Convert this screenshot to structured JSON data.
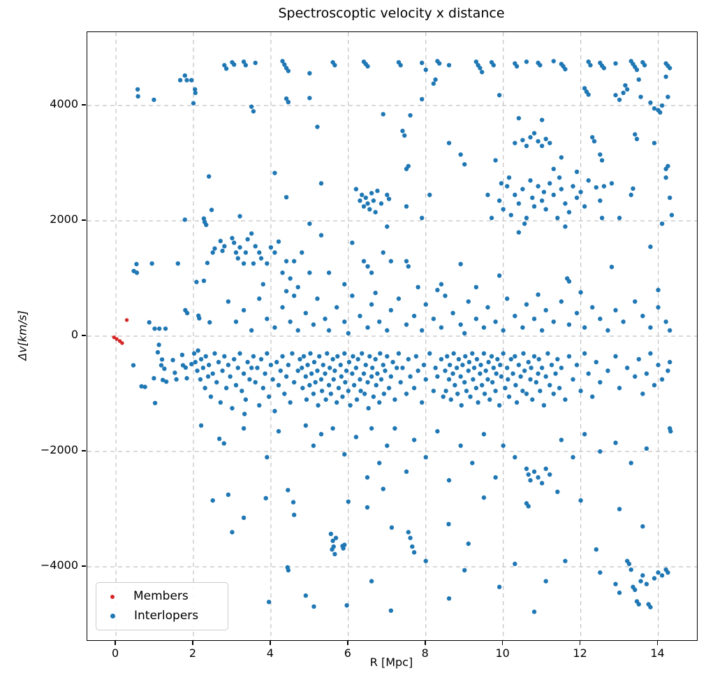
{
  "chart_data": {
    "type": "scatter",
    "title": "Spectroscoptic velocity x distance",
    "xlabel": "R [Mpc]",
    "ylabel": "Δv[km/s]",
    "xlim": [
      -0.74,
      15.0
    ],
    "ylim": [
      -5273,
      5273
    ],
    "xticks": [
      0,
      2,
      4,
      6,
      8,
      10,
      12,
      14
    ],
    "yticks": [
      -4000,
      -2000,
      0,
      2000,
      4000
    ],
    "grid": true,
    "grid_style": "dashed",
    "grid_color": "#c2c2c2",
    "legend_position": "lower left",
    "legend_entries": [
      "Members",
      "Interlopers"
    ],
    "series": [
      {
        "name": "Members",
        "color": "#d62728",
        "marker_radius": 2.7,
        "points": "-0.05,-20;0.02,-50;0.1,-85;0.16,-120;0.28,280"
      },
      {
        "name": "Interlopers",
        "color": "#1f77b4",
        "marker_radius": 3.2,
        "points": "2.8,4700;2.85,4640;3,4750;3.05,4710;3.3,4760;3.35,4700;3.6,4740;4.3,4770;4.35,4710;4.4,4650;4.45,4600;5.6,4750;5.65,4700;6.4,4760;6.45,4720;6.5,4680;7.3,4750;7.35,4700;7.9,4740;8,4620;8.3,4770;8.35,4730;8.6,4700;9.3,4760;9.35,4700;9.4,4650;9.7,4750;9.75,4700;10.3,4730;10.35,4680;10.6,4760;10.9,4740;10.95,4700;11.3,4770;11.5,4720;11.55,4680;11.6,4630;12.2,4760;12.25,4700;12.5,4740;12.55,4690;12.6,4650;12.9,4730;13.3,4770;13.35,4720;13.4,4670;13.6,4750;13.65,4700;14.2,4730;14.25,4690;14.3,4650;5,4560;9.45,4580;13.45,4620;0.56,4280;0.57,4160;0.98,4100;1.66,4440;1.78,4520;1.83,4440;1.95,4440;2.04,4280;2.05,4220;2,4040;3.5,3980;3.55,3900;4.4,4120;4.45,4060;5,4130;6.9,3850;7.6,3830;7.9,4110;8.2,4380;9.9,4180;10.4,3780;11,3750;12.1,4300;12.15,4240;12.2,4190;12.9,4180;13,4100;13.1,4220;13.15,4350;13.2,4280;13.5,4450;13.55,4150;13.8,4050;13.9,3950;14,3920;14.05,3880;14.1,4000;14.2,4500;14.25,4150;8.25,4450;5.2,3630;7.4,3560;7.45,3480;8.6,3350;8.9,3150;9,2980;9.8,3050;10.3,3350;10.5,3400;10.6,3300;10.7,3450;10.8,3520;10.9,3380;11,3300;11.1,3420;11.2,3350;11.3,2900;11.5,3100;11.9,2850;12.3,3450;12.35,3380;12.5,3150;12.55,3050;13.4,3500;13.45,3420;13.9,3350;14.2,2900;14.25,2950;4.1,2830;2.4,2770;7.5,2900;7.55,2950;1.78,2020;2.27,2040;2.29,1980;2.33,1930;2.47,2190;4.4,2410;5.3,2650;6.3,2350;6.35,2450;6.4,2250;6.45,2400;6.5,2300;6.55,2200;6.6,2480;6.65,2350;6.7,2150;6.75,2520;7,2450;7.05,2380;7.5,2250;7.9,2050;9.7,2050;9.9,2350;10,2200;10.1,2600;10.2,2100;10.3,2450;10.4,2300;10.5,2550;10.6,2050;10.7,2700;10.75,2400;10.8,2250;10.9,2600;11,2350;11.05,2500;11.1,2200;11.2,2650;11.3,2450;11.4,2050;11.5,2550;11.6,2300;11.7,2150;11.8,2600;11.9,2400;12,2500;12.1,2250;12.2,2700;12.4,2580;12.5,2350;12.6,2600;13.3,2450;13.35,2560;14.3,2400;14.35,2100;14.1,1950;12.55,2050;10.15,2750;9.95,2650;11.45,2750;6.2,2550;6.85,2300;5,1950;8.1,2450;3.2,2080;12.8,2650;13,2050;14.2,2750;9.6,2450;10.55,1950;0.46,1130;0.53,1250;0.54,1100;0.93,1260;1.6,1260;2.36,1270;2.08,940;2.27,960;2.5,1450;2.55,1520;2.7,1650;2.75,1480;2.8,1560;3,1700;3.05,1620;3.1,1450;3.15,1350;3.2,1540;3.3,1260;3.35,1450;3.4,1680;3.5,1780;3.55,1260;3.6,1560;3.7,1450;3.75,1350;3.8,900;3.9,1260;4,1540;4.1,1450;4.2,1640;4.3,1100;4.4,1300;4.5,1000;4.6,1300;4.7,850;4.8,1450;5,1100;5.5,1100;5.9,900;6.4,1300;6.5,1210;6.6,1100;6.9,1450;7,1900;7.1,1300;7.5,1300;7.55,1210;7.8,850;8.4,900;10.4,1800;11.6,1900;11.65,1000;11.7,950;12.8,1200;13.8,1550;14,800;9.3,850;9.9,1050;8.9,1250;5.3,1750;6.1,1620;0.86,240;1,130;1.12,130;1.28,130;1.79,450;1.84,400;2.13,355;2.15,310;2.42,240;2.9,600;3.1,250;3.3,450;3.5,100;3.7,650;3.9,300;4.1,150;4.3,500;4.5,250;4.6,700;4.7,100;4.9,400;5.1,200;5.2,650;5.4,300;5.5,100;5.7,500;5.9,250;6,50;6.1,700;6.3,350;6.5,150;6.6,550;6.8,250;7,100;7.1,450;7.3,650;7.5,200;7.7,350;7.9,100;8,550;8.2,300;8.4,150;8.5,700;8.7,400;8.9,200;9,50;9.1,600;9.3,300;9.5,150;9.6,500;9.8,250;10,100;10.1,650;10.3,350;10.5,150;10.6,550;10.8,300;11,100;11.1,450;11.3,250;11.5,600;11.7,200;11.9,400;12.1,150;12.3,500;12.5,300;12.7,100;12.9,450;13.1,250;13.4,600;13.6,350;13.8,150;14,500;14.2,250;14.3,100;8.3,800;6.7,750;4.4,780;10.9,720;12,760;0.45,-505;0.66,-870;0.75,-880;0.98,-730;1.01,-1160;1.08,-280;1.11,-150;1.17,-505;1.19,-405;1.21,-760;1.25,-565;1.3,-790;1.47,-415;1.52,-635;1.56,-750;1.71,-325;1.73,-505;1.8,-545;1.83,-730;1.95,-485;2.02,-300;2.05,-450;2.1,-600;2.12,-250;2.18,-750;2.2,-400;2.25,-550;2.3,-900;2.32,-350;2.38,-700;2.4,-500;2.45,-1050;2.5,-650;2.55,-300;2.6,-800;2.65,-450;2.7,-1150;2.75,-600;2.8,-350;2.85,-900;2.9,-500;2.95,-700;3,-1250;3.05,-400;3.1,-850;3.15,-550;3.2,-300;3.25,-950;3.3,-650;3.35,-1100;3.4,-450;3.45,-750;3.5,-550;3.32,-1350;3.55,-350;3.6,-800;3.65,-550;3.7,-1200;3.75,-400;3.8,-900;3.85,-650;3.9,-300;3.95,-1050;4,-500;4.05,-750;4.1,-1300;4.15,-450;4.2,-850;4.25,-600;4.3,-350;4.35,-1000;4.4,-700;4.45,-500;4.5,-1150;4.55,-300;4.6,-800;4.7,-600;4.75,-400;4.8,-550;4.82,-900;4.85,-350;4.9,-700;4.92,-1100;4.95,-500;5,-850;5.02,-300;5.05,-650;5.1,-1000;5.12,-450;5.15,-800;5.2,-600;5.22,-1200;5.25,-350;5.3,-750;5.32,-950;5.35,-500;5.4,-650;5.42,-1100;5.45,-300;5.5,-850;5.52,-550;5.55,-1000;5.6,-400;5.62,-750;5.65,-600;5.7,-1150;5.72,-350;5.75,-900;5.8,-500;5.82,-700;5.85,-1050;5.9,-300;5.92,-800;5.95,-600;6,-950;6.02,-450;6.05,-1200;6.1,-650;6.12,-350;6.15,-850;6.2,-550;6.22,-1100;6.25,-400;6.3,-750;6.32,-950;6.35,-300;6.4,-650;6.42,-1000;6.45,-500;6.5,-800;6.52,-1250;6.55,-350;6.6,-700;6.62,-550;6.65,-1050;6.7,-400;6.72,-850;6.75,-650;6.8,-1150;6.82,-300;6.85,-750;6.9,-500;6.92,-1000;6.95,-600;7,-350;7.05,-900;7.1,-700;7.15,-450;7.2,-1100;7.25,-550;7.3,-300;7.35,-800;7.4,-550;7.5,-1000;7.55,-400;7.6,-700;7.7,-900;7.75,-350;7.8,-600;7.9,-1150;7.95,-500;8,-750;8.1,-300;8.2,-950;8.25,-550;8.3,-700;8.4,-400;8.45,-1050;8.5,-600;8.52,-950;8.55,-350;8.6,-750;8.62,-500;8.65,-1100;8.7,-650;8.72,-300;8.75,-850;8.8,-550;8.82,-1000;8.85,-400;8.9,-700;8.92,-1200;8.95,-500;9,-800;9.02,-350;9.05,-950;9.1,-600;9.12,-450;9.15,-1050;9.2,-300;9.22,-750;9.25,-550;9.3,-900;9.32,-400;9.35,-1150;9.4,-650;9.42,-500;9.45,-850;9.5,-300;9.52,-1000;9.55,-600;9.6,-750;9.62,-450;9.65,-1100;9.7,-350;9.72,-800;9.75,-550;9.8,-950;9.82,-650;9.85,-400;9.9,-1200;9.92,-500;9.95,-700;10,-300;10.05,-900;10.1,-550;10.12,-750;10.15,-1050;10.2,-400;10.25,-650;10.3,-350;10.32,-850;10.35,-1150;10.4,-500;10.45,-700;10.5,-950;10.52,-300;10.55,-600;10.6,-1000;10.65,-450;10.7,-750;10.72,-550;10.75,-1100;10.8,-350;10.85,-800;10.9,-650;10.92,-400;10.95,-950;11,-550;11.05,-1200;11.1,-700;11.15,-300;11.2,-850;11.25,-500;11.3,-1000;11.35,-650;11.4,-400;11.45,-900;11.5,-550;11.6,-1100;11.7,-350;11.8,-750;11.9,-500;12,-950;12.1,-300;12.2,-650;12.3,-1050;12.4,-450;12.5,-800;12.7,-600;12.9,-350;13,-900;13.2,-550;13.4,-700;13.5,-400;13.6,-1000;13.7,-650;13.8,-300;13.9,-850;14,-500;14.1,-750;14.25,-600;14.3,-450;2.2,-1550;2.67,-1780;2.79,-1860;3.3,-1600;3.9,-2100;4.2,-1650;4.44,-2670;4.58,-2880;4.9,-1550;5.1,-1900;5.3,-1700;5.6,-1600;5.9,-2050;6,-2870;6.2,-1750;6.49,-2450;6.6,-1600;6.8,-2200;7,-1900;7.2,-1600;7.5,-2350;7.7,-1800;8,-2100;8.3,-1650;8.6,-2500;8.9,-1900;9.2,-2200;9.5,-1700;9.8,-2450;10,-1900;10.3,-2100;10.6,-2300;10.65,-2400;10.7,-2500;10.8,-2350;10.9,-2450;11,-2550;11.1,-2300;11.2,-2400;11.5,-1800;11.8,-2100;12.1,-1700;12.5,-2000;12.9,-1850;13.3,-2200;13.7,-1950;14.3,-1600;14.32,-1650;2.5,-2850;2.9,-2750;3,-3400;3.3,-3150;3.87,-2810;4.6,-3100;5.55,-3430;5.58,-3700;5.6,-3550;5.62,-3650;5.65,-3780;5.68,-3500;5.85,-3640;5.87,-3680;5.9,-3620;6.49,-2970;6.9,-2650;7.12,-3320;7.55,-3400;7.6,-3500;7.65,-3650;7.7,-3750;8.59,-3260;9.1,-3600;9.5,-2800;10.6,-2900;10.65,-2950;11.4,-2700;12,-2850;12.4,-3700;13,-3000;13.6,-3300;3.95,-4610;4.43,-4010;4.45,-4060;4.9,-4500;5.11,-4690;5.96,-4670;6.6,-4250;7.1,-4760;8,-3900;8.6,-4550;9,-4060;9.9,-4350;10.3,-3950;10.8,-4780;11.1,-4250;11.6,-3900;12.5,-4100;12.9,-4300;13,-4450;13.2,-3900;13.25,-3950;13.3,-4050;13.35,-4350;13.4,-4400;13.45,-4600;13.5,-4650;13.55,-4250;13.6,-4150;13.7,-4300;13.75,-4650;13.8,-4700;13.9,-4200;14,-4100;14.1,-4150;14.2,-4050;14.25,-4100"
      }
    ]
  }
}
